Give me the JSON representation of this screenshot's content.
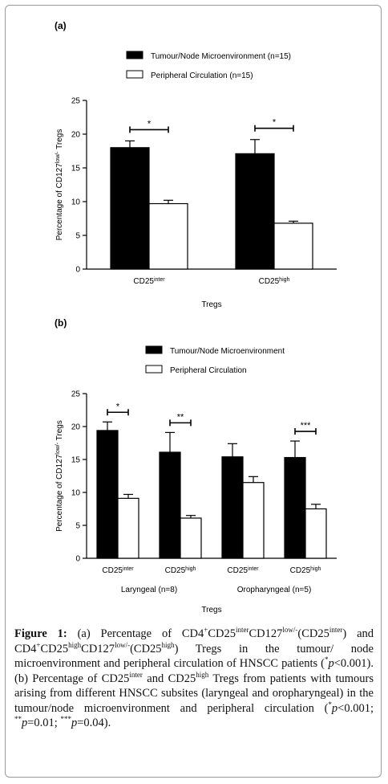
{
  "chart_data": [
    {
      "type": "bar",
      "panel_label": "(a)",
      "categories": [
        "CD25",
        "CD25"
      ],
      "category_superscripts": [
        "inter",
        "high"
      ],
      "series": [
        {
          "name": "Tumour/Node Microenvironment (n=15)",
          "values": [
            18.0,
            17.1
          ],
          "errors": [
            1.0,
            2.1
          ],
          "color": "#000000"
        },
        {
          "name": "Peripheral Circulation (n=15)",
          "values": [
            9.7,
            6.8
          ],
          "errors": [
            0.5,
            0.3
          ],
          "color": "#ffffff"
        }
      ],
      "significance": [
        "*",
        "*"
      ],
      "xlabel": "Tregs",
      "ylabel_parts": [
        "Percentage of CD127",
        "low/-",
        " Tregs"
      ],
      "ylim": [
        0,
        25
      ],
      "yticks": [
        "0",
        "5",
        "10",
        "15",
        "20",
        "25"
      ],
      "legend_position": "top"
    },
    {
      "type": "bar",
      "panel_label": "(b)",
      "categories": [
        "CD25",
        "CD25",
        "CD25",
        "CD25"
      ],
      "category_superscripts": [
        "inter",
        "high",
        "inter",
        "high"
      ],
      "groups": [
        "Laryngeal (n=8)",
        "Oropharyngeal (n=5)"
      ],
      "series": [
        {
          "name": "Tumour/Node Microenvironment",
          "values": [
            19.4,
            16.1,
            15.4,
            15.3
          ],
          "errors": [
            1.3,
            3.0,
            2.0,
            2.5
          ],
          "color": "#000000"
        },
        {
          "name": "Peripheral Circulation",
          "values": [
            9.1,
            6.1,
            11.5,
            7.5
          ],
          "errors": [
            0.6,
            0.4,
            0.9,
            0.7
          ],
          "color": "#ffffff"
        }
      ],
      "significance": [
        "*",
        "**",
        "",
        "***"
      ],
      "xlabel": "Tregs",
      "ylabel_parts": [
        "Percentage of CD127",
        "low/-",
        " Tregs"
      ],
      "ylim": [
        0,
        25
      ],
      "yticks": [
        "0",
        "5",
        "10",
        "15",
        "20",
        "25"
      ],
      "legend_position": "top"
    }
  ],
  "caption": {
    "label": "Figure 1:",
    "html": "(a) Percentage of CD4<sup>+</sup>CD25<sup>inter</sup>CD127<sup>low/-</sup>(CD25<sup>inter</sup>) and CD4<sup>+</sup>CD25<sup>high</sup>CD127<sup>low/-</sup>(CD25<sup>high</sup>) Tregs in the tumour/ node microenvironment and peripheral circulation of HNSCC patients (<sup>*</sup><i>p</i>&lt;0.001). (b) Percentage of CD25<sup>inter</sup> and CD25<sup>high</sup> Tregs from patients with tumours arising from different HNSCC subsites (laryngeal and oropharyngeal) in the tumour/node microenvironment and peripheral circulation (<sup>*</sup><i>p</i>&lt;0.001; <sup>**</sup><i>p</i>=0.01; <sup>***</sup><i>p</i>=0.04)."
  }
}
